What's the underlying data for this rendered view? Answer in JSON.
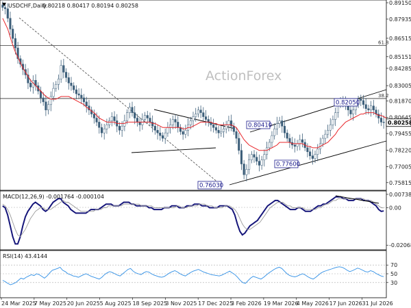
{
  "chart_data": [
    {
      "type": "candlestick",
      "symbol_line": "USDCHF,Daily",
      "ohlc_line": "0.80218 0.80417 0.80194 0.80258",
      "watermark": "ActionForex",
      "ylim": [
        0.7545,
        0.8915
      ],
      "y_ticks": [
        "0.89150",
        "0.87935",
        "0.86515",
        "0.85151",
        "0.84285",
        "0.83005",
        "0.81870",
        "0.80645",
        "0.79455",
        "0.78220",
        "0.77005",
        "0.75815"
      ],
      "x_tick_labels": [
        "24 Mar 2025",
        "7 May 2025",
        "20 Jun 2025",
        "5 Aug 2025",
        "18 Sep 2025",
        "3 Nov 2025",
        "17 Dec 2025",
        "3 Feb 2026",
        "19 Mar 2026",
        "4 May 2026",
        "17 Jun 2026",
        "31 Jul 2026"
      ],
      "last_price": "0.80258",
      "fib_levels": [
        {
          "label": "61.8",
          "value": 0.8598
        },
        {
          "label": "38.2",
          "value": 0.8205
        }
      ],
      "annotations": [
        {
          "text": "0.82050",
          "value": 0.8205
        },
        {
          "text": "0.80410",
          "value": 0.8041
        },
        {
          "text": "0.77600",
          "value": 0.776
        },
        {
          "text": "0.76030",
          "value": 0.7603
        }
      ],
      "close_series": [
        0.888,
        0.887,
        0.88,
        0.872,
        0.865,
        0.858,
        0.85,
        0.846,
        0.842,
        0.838,
        0.832,
        0.829,
        0.834,
        0.83,
        0.826,
        0.821,
        0.818,
        0.812,
        0.816,
        0.822,
        0.828,
        0.831,
        0.835,
        0.845,
        0.84,
        0.836,
        0.832,
        0.83,
        0.827,
        0.824,
        0.823,
        0.821,
        0.818,
        0.815,
        0.812,
        0.809,
        0.806,
        0.803,
        0.799,
        0.795,
        0.798,
        0.801,
        0.804,
        0.807,
        0.804,
        0.8,
        0.797,
        0.8,
        0.804,
        0.81,
        0.814,
        0.81,
        0.806,
        0.803,
        0.801,
        0.805,
        0.808,
        0.806,
        0.803,
        0.8,
        0.797,
        0.795,
        0.793,
        0.791,
        0.795,
        0.799,
        0.801,
        0.805,
        0.803,
        0.799,
        0.796,
        0.794,
        0.797,
        0.801,
        0.804,
        0.807,
        0.809,
        0.812,
        0.81,
        0.807,
        0.805,
        0.803,
        0.801,
        0.799,
        0.797,
        0.795,
        0.796,
        0.798,
        0.801,
        0.804,
        0.8,
        0.796,
        0.791,
        0.782,
        0.772,
        0.764,
        0.768,
        0.775,
        0.779,
        0.777,
        0.774,
        0.771,
        0.775,
        0.779,
        0.784,
        0.788,
        0.793,
        0.798,
        0.802,
        0.804,
        0.8,
        0.795,
        0.791,
        0.788,
        0.786,
        0.785,
        0.787,
        0.79,
        0.788,
        0.784,
        0.781,
        0.778,
        0.776,
        0.779,
        0.783,
        0.787,
        0.791,
        0.794,
        0.797,
        0.801,
        0.805,
        0.81,
        0.816,
        0.819,
        0.818,
        0.815,
        0.812,
        0.809,
        0.812,
        0.816,
        0.82,
        0.819,
        0.816,
        0.813,
        0.812,
        0.815,
        0.812,
        0.809,
        0.806,
        0.803,
        0.8026
      ],
      "ma_series": [
        0.88,
        0.876,
        0.872,
        0.866,
        0.86,
        0.855,
        0.851,
        0.847,
        0.843,
        0.84,
        0.837,
        0.834,
        0.832,
        0.83,
        0.828,
        0.826,
        0.824,
        0.822,
        0.821,
        0.82,
        0.82,
        0.82,
        0.821,
        0.822,
        0.822,
        0.822,
        0.822,
        0.821,
        0.82,
        0.819,
        0.818,
        0.817,
        0.816,
        0.814,
        0.813,
        0.811,
        0.81,
        0.808,
        0.806,
        0.805,
        0.804,
        0.803,
        0.803,
        0.803,
        0.803,
        0.802,
        0.802,
        0.802,
        0.802,
        0.803,
        0.803,
        0.803,
        0.803,
        0.803,
        0.803,
        0.803,
        0.803,
        0.803,
        0.803,
        0.802,
        0.802,
        0.801,
        0.8,
        0.799,
        0.799,
        0.799,
        0.799,
        0.799,
        0.799,
        0.799,
        0.799,
        0.798,
        0.798,
        0.799,
        0.799,
        0.8,
        0.801,
        0.802,
        0.803,
        0.803,
        0.803,
        0.803,
        0.803,
        0.802,
        0.802,
        0.801,
        0.801,
        0.801,
        0.801,
        0.801,
        0.801,
        0.8,
        0.799,
        0.796,
        0.793,
        0.79,
        0.788,
        0.786,
        0.785,
        0.784,
        0.783,
        0.782,
        0.782,
        0.782,
        0.782,
        0.783,
        0.784,
        0.785,
        0.786,
        0.788,
        0.788,
        0.788,
        0.788,
        0.788,
        0.787,
        0.787,
        0.787,
        0.787,
        0.787,
        0.786,
        0.785,
        0.785,
        0.784,
        0.784,
        0.784,
        0.785,
        0.786,
        0.787,
        0.788,
        0.79,
        0.792,
        0.794,
        0.797,
        0.799,
        0.801,
        0.803,
        0.804,
        0.805,
        0.806,
        0.807,
        0.808,
        0.809,
        0.809,
        0.81,
        0.81,
        0.81,
        0.81,
        0.809,
        0.808,
        0.808,
        0.807,
        0.806
      ]
    },
    {
      "type": "line",
      "legend": "MACD(12,26,9) -0.001764 -0.000104",
      "ylim": [
        -0.0225,
        0.0085
      ],
      "y_ticks": [
        "0.00738",
        "0.00",
        "-0.020686"
      ],
      "macd_series": [
        0.001,
        0.0,
        -0.004,
        -0.01,
        -0.016,
        -0.02,
        -0.02,
        -0.016,
        -0.01,
        -0.005,
        -0.002,
        0.0,
        0.002,
        0.003,
        0.002,
        0.001,
        -0.001,
        -0.002,
        -0.001,
        0.001,
        0.003,
        0.004,
        0.005,
        0.005,
        0.003,
        0.002,
        0.001,
        -0.001,
        -0.002,
        -0.003,
        -0.003,
        -0.003,
        -0.003,
        -0.003,
        -0.002,
        -0.001,
        -0.001,
        -0.001,
        -0.001,
        0.0,
        0.001,
        0.002,
        0.002,
        0.002,
        0.001,
        0.001,
        0.001,
        0.002,
        0.003,
        0.003,
        0.003,
        0.002,
        0.002,
        0.001,
        0.001,
        0.001,
        0.001,
        0.001,
        0.0,
        0.0,
        -0.001,
        -0.001,
        -0.001,
        -0.001,
        0.0,
        0.0,
        0.0,
        0.001,
        0.001,
        0.001,
        0.0,
        0.0,
        0.0,
        0.001,
        0.001,
        0.001,
        0.002,
        0.002,
        0.002,
        0.001,
        0.001,
        0.001,
        0.0,
        0.0,
        0.0,
        0.0,
        0.001,
        0.001,
        0.001,
        0.001,
        0.0,
        -0.001,
        -0.004,
        -0.009,
        -0.013,
        -0.015,
        -0.014,
        -0.012,
        -0.01,
        -0.009,
        -0.008,
        -0.007,
        -0.005,
        -0.003,
        -0.001,
        0.001,
        0.002,
        0.003,
        0.004,
        0.004,
        0.003,
        0.002,
        0.001,
        0.0,
        -0.001,
        -0.001,
        -0.001,
        0.0,
        0.0,
        -0.001,
        -0.002,
        -0.002,
        -0.002,
        -0.001,
        0.0,
        0.001,
        0.001,
        0.002,
        0.002,
        0.003,
        0.004,
        0.005,
        0.006,
        0.006,
        0.006,
        0.005,
        0.005,
        0.004,
        0.004,
        0.004,
        0.005,
        0.005,
        0.005,
        0.004,
        0.004,
        0.004,
        0.003,
        0.002,
        0.001,
        -0.001,
        -0.002,
        -0.0018
      ],
      "signal_series": [
        0.002,
        0.001,
        -0.001,
        -0.004,
        -0.008,
        -0.012,
        -0.015,
        -0.016,
        -0.014,
        -0.012,
        -0.009,
        -0.006,
        -0.004,
        -0.002,
        -0.001,
        0.0,
        0.0,
        -0.001,
        -0.001,
        -0.001,
        0.0,
        0.001,
        0.002,
        0.003,
        0.004,
        0.003,
        0.003,
        0.002,
        0.001,
        0.0,
        -0.001,
        -0.002,
        -0.002,
        -0.002,
        -0.002,
        -0.002,
        -0.002,
        -0.001,
        -0.001,
        -0.001,
        0.0,
        0.0,
        0.001,
        0.001,
        0.001,
        0.001,
        0.001,
        0.001,
        0.002,
        0.002,
        0.002,
        0.002,
        0.002,
        0.002,
        0.002,
        0.001,
        0.001,
        0.001,
        0.001,
        0.001,
        0.0,
        0.0,
        0.0,
        0.0,
        0.0,
        0.0,
        0.0,
        0.0,
        0.0,
        0.001,
        0.001,
        0.0,
        0.0,
        0.0,
        0.001,
        0.001,
        0.001,
        0.001,
        0.002,
        0.002,
        0.002,
        0.001,
        0.001,
        0.001,
        0.0,
        0.0,
        0.0,
        0.0,
        0.001,
        0.001,
        0.001,
        0.0,
        -0.001,
        -0.003,
        -0.006,
        -0.009,
        -0.011,
        -0.012,
        -0.012,
        -0.011,
        -0.01,
        -0.009,
        -0.008,
        -0.006,
        -0.004,
        -0.002,
        0.0,
        0.001,
        0.002,
        0.003,
        0.003,
        0.003,
        0.002,
        0.001,
        0.001,
        0.0,
        0.0,
        0.0,
        0.0,
        0.0,
        -0.001,
        -0.001,
        -0.001,
        -0.001,
        -0.001,
        0.0,
        0.0,
        0.001,
        0.002,
        0.002,
        0.003,
        0.004,
        0.004,
        0.005,
        0.005,
        0.005,
        0.005,
        0.005,
        0.005,
        0.005,
        0.005,
        0.005,
        0.005,
        0.005,
        0.004,
        0.004,
        0.004,
        0.003,
        0.002,
        0.001,
        0.0,
        -0.0001
      ]
    },
    {
      "type": "line",
      "legend": "RSI(14) 43.4144",
      "ylim": [
        0,
        100
      ],
      "y_ticks": [
        "70",
        "50",
        "30"
      ],
      "rsi_series": [
        35,
        32,
        28,
        25,
        27,
        30,
        35,
        40,
        38,
        42,
        45,
        48,
        46,
        50,
        48,
        44,
        40,
        45,
        52,
        58,
        60,
        62,
        65,
        58,
        55,
        50,
        48,
        45,
        44,
        42,
        45,
        48,
        50,
        47,
        44,
        42,
        40,
        38,
        42,
        48,
        52,
        55,
        53,
        50,
        47,
        45,
        50,
        55,
        60,
        62,
        56,
        52,
        50,
        48,
        52,
        55,
        54,
        50,
        47,
        45,
        43,
        42,
        44,
        48,
        52,
        55,
        57,
        54,
        50,
        47,
        45,
        49,
        53,
        56,
        58,
        60,
        57,
        54,
        52,
        50,
        48,
        47,
        46,
        45,
        47,
        50,
        53,
        56,
        52,
        48,
        42,
        35,
        30,
        28,
        34,
        40,
        44,
        42,
        40,
        38,
        42,
        47,
        52,
        56,
        60,
        63,
        65,
        62,
        56,
        50,
        46,
        44,
        43,
        45,
        48,
        50,
        47,
        43,
        40,
        38,
        42,
        47,
        52,
        55,
        57,
        59,
        61,
        63,
        65,
        66,
        65,
        62,
        58,
        55,
        57,
        60,
        63,
        61,
        58,
        55,
        54,
        57,
        55,
        51,
        48,
        45,
        43.4
      ]
    }
  ]
}
